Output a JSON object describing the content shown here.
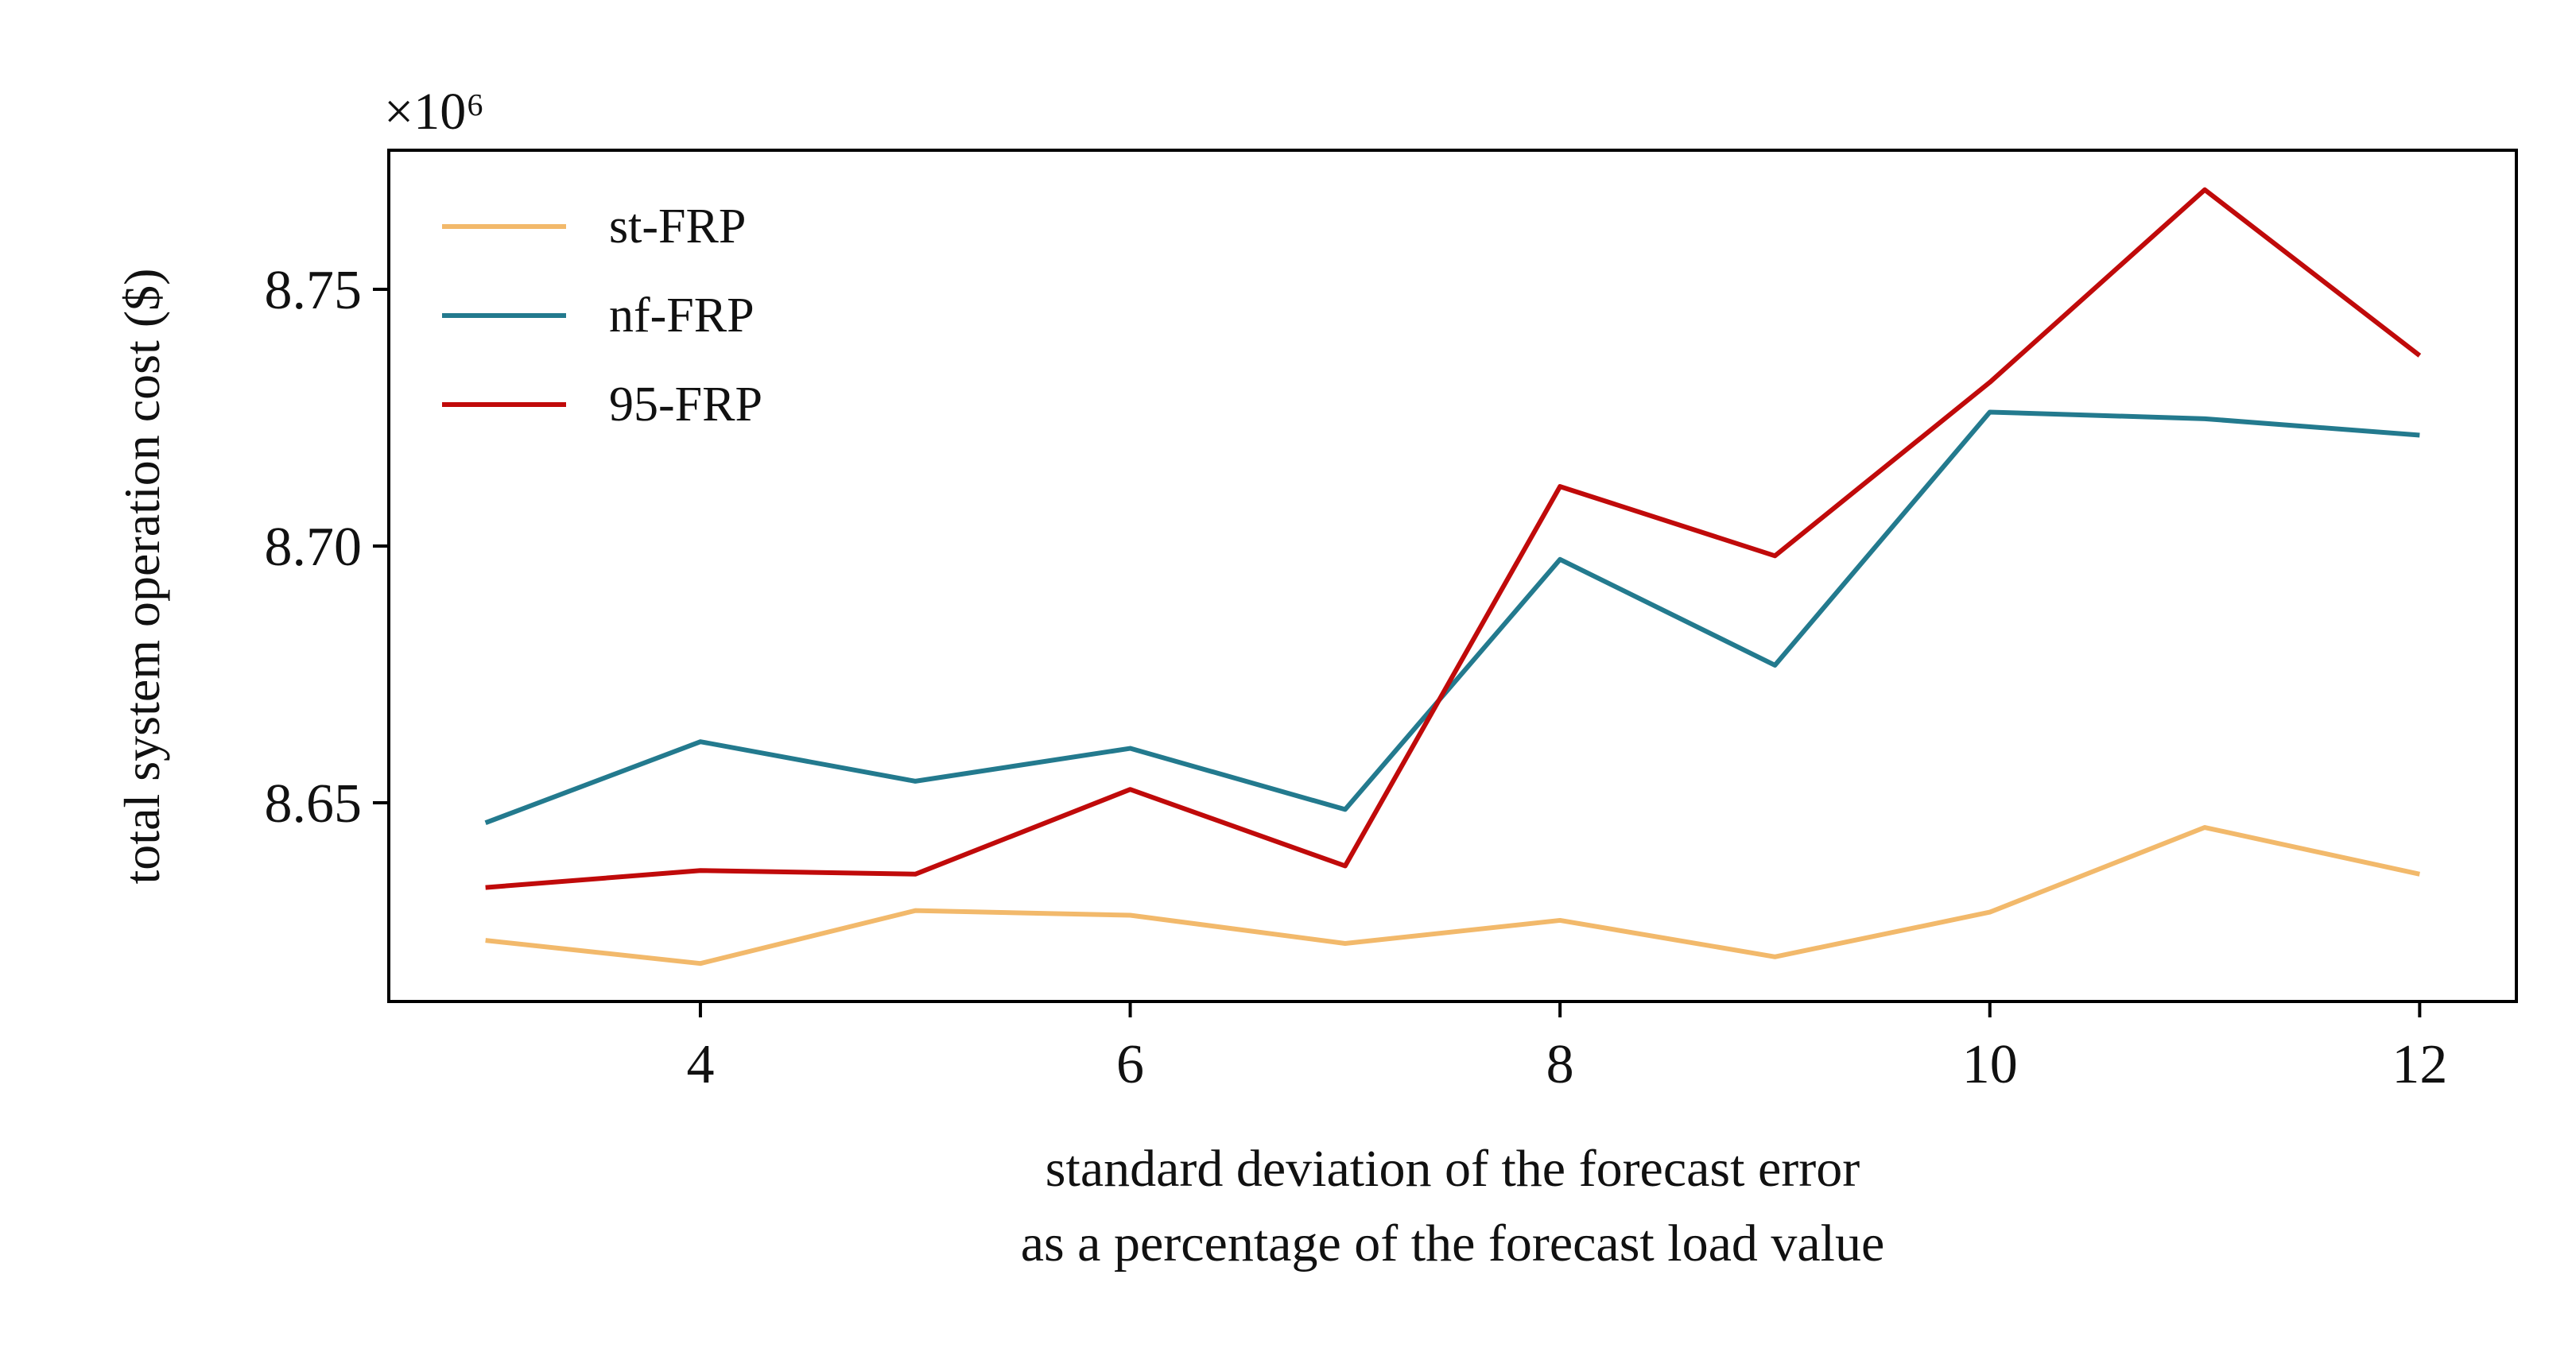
{
  "chart_data": {
    "type": "line",
    "ylabel": "total system operation cost ($)",
    "xlabel": [
      "standard deviation of the forecast error",
      "as a percentage of the forecast load value"
    ],
    "y_offset_label": "×10⁶",
    "x": [
      3,
      4,
      5,
      6,
      7,
      8,
      9,
      10,
      11,
      12
    ],
    "series": [
      {
        "name": "st-FRP",
        "color": "#f2b96b",
        "values": [
          8.6232,
          8.6187,
          8.629,
          8.6281,
          8.6226,
          8.6271,
          8.62,
          8.6287,
          8.6452,
          8.6361
        ]
      },
      {
        "name": "nf-FRP",
        "color": "#237a8e",
        "values": [
          8.6461,
          8.6619,
          8.6542,
          8.6606,
          8.6487,
          8.6974,
          8.6768,
          8.7261,
          8.7248,
          8.7216
        ]
      },
      {
        "name": "95-FRP",
        "color": "#c00a0a",
        "values": [
          8.6335,
          8.6368,
          8.6361,
          8.6526,
          8.6377,
          8.7116,
          8.6981,
          8.7319,
          8.7694,
          8.7371
        ]
      }
    ],
    "xlim": [
      2.55,
      12.45
    ],
    "xticks": [
      4,
      6,
      8,
      10,
      12
    ],
    "ylim": [
      8.6113,
      8.7771
    ],
    "yticks": [
      8.65,
      {
        "value": 8.7,
        "label": "8.70"
      },
      8.75
    ],
    "legend": "upper left",
    "grid": false
  }
}
